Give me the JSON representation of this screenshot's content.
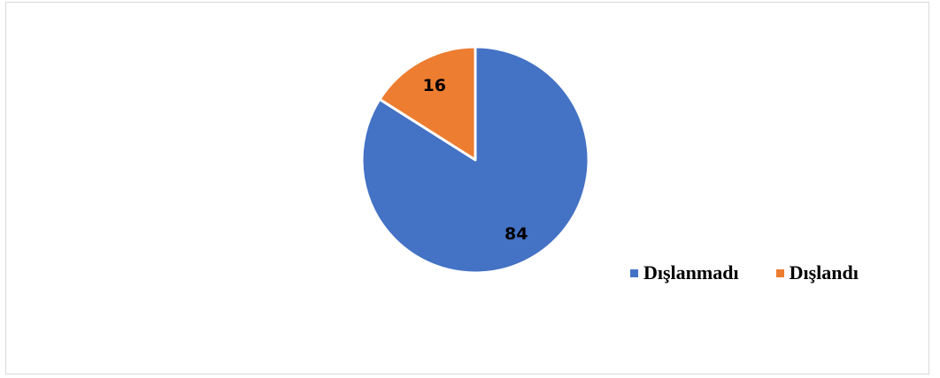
{
  "chart_data": {
    "type": "pie",
    "title": "",
    "slices": [
      {
        "label": "Dışlanmadı",
        "value": 84,
        "color": "#4472C4"
      },
      {
        "label": "Dışlandı",
        "value": 16,
        "color": "#ED7D31"
      }
    ],
    "start": "top",
    "direction": "clockwise",
    "legend_position": "bottom-right"
  },
  "legend": {
    "items": [
      {
        "label": "Dışlanmadı",
        "color": "#4472C4"
      },
      {
        "label": "Dışlandı",
        "color": "#ED7D31"
      }
    ]
  }
}
